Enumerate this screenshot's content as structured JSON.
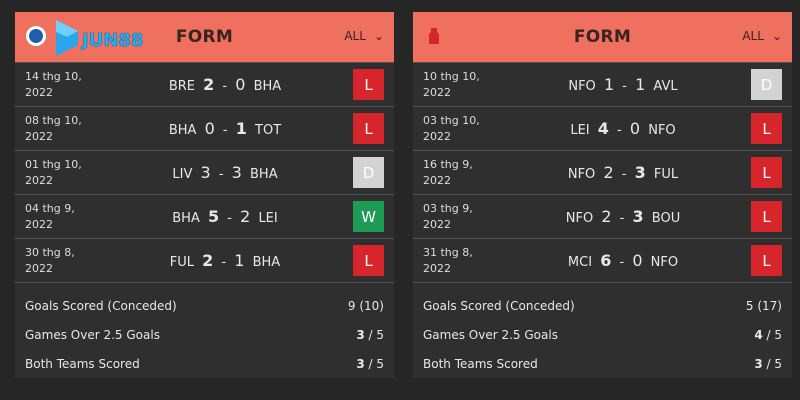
{
  "colors": {
    "header": "#ef705f",
    "loss": "#d7262b",
    "draw": "#d3d3d3",
    "win": "#1e9b55"
  },
  "watermark": "JUN88",
  "panels": [
    {
      "team": "BHA",
      "crest_icon": "brighton-crest-icon",
      "title": "FORM",
      "filter": "ALL",
      "matches": [
        {
          "date1": "14 thg 10,",
          "date2": "2022",
          "home": "BRE",
          "hs": "2",
          "as": "0",
          "away": "BHA",
          "bold": "h",
          "result": "L"
        },
        {
          "date1": "08 thg 10,",
          "date2": "2022",
          "home": "BHA",
          "hs": "0",
          "as": "1",
          "away": "TOT",
          "bold": "a",
          "result": "L"
        },
        {
          "date1": "01 thg 10,",
          "date2": "2022",
          "home": "LIV",
          "hs": "3",
          "as": "3",
          "away": "BHA",
          "bold": "",
          "result": "D"
        },
        {
          "date1": "04 thg 9,",
          "date2": "2022",
          "home": "BHA",
          "hs": "5",
          "as": "2",
          "away": "LEI",
          "bold": "h",
          "result": "W"
        },
        {
          "date1": "30 thg 8,",
          "date2": "2022",
          "home": "FUL",
          "hs": "2",
          "as": "1",
          "away": "BHA",
          "bold": "h",
          "result": "L"
        }
      ],
      "stats": [
        {
          "label": "Goals Scored (Conceded)",
          "value": "9 (10)",
          "bold": "",
          "rest": ""
        },
        {
          "label": "Games Over 2.5 Goals",
          "value": "",
          "bold": "3",
          "rest": " / 5"
        },
        {
          "label": "Both Teams Scored",
          "value": "",
          "bold": "3",
          "rest": " / 5"
        }
      ]
    },
    {
      "team": "NFO",
      "crest_icon": "nottingham-forest-crest-icon",
      "title": "FORM",
      "filter": "ALL",
      "matches": [
        {
          "date1": "10 thg 10,",
          "date2": "2022",
          "home": "NFO",
          "hs": "1",
          "as": "1",
          "away": "AVL",
          "bold": "",
          "result": "D"
        },
        {
          "date1": "03 thg 10,",
          "date2": "2022",
          "home": "LEI",
          "hs": "4",
          "as": "0",
          "away": "NFO",
          "bold": "h",
          "result": "L"
        },
        {
          "date1": "16 thg 9,",
          "date2": "2022",
          "home": "NFO",
          "hs": "2",
          "as": "3",
          "away": "FUL",
          "bold": "a",
          "result": "L"
        },
        {
          "date1": "03 thg 9,",
          "date2": "2022",
          "home": "NFO",
          "hs": "2",
          "as": "3",
          "away": "BOU",
          "bold": "a",
          "result": "L"
        },
        {
          "date1": "31 thg 8,",
          "date2": "2022",
          "home": "MCI",
          "hs": "6",
          "as": "0",
          "away": "NFO",
          "bold": "h",
          "result": "L"
        }
      ],
      "stats": [
        {
          "label": "Goals Scored (Conceded)",
          "value": "5 (17)",
          "bold": "",
          "rest": ""
        },
        {
          "label": "Games Over 2.5 Goals",
          "value": "",
          "bold": "4",
          "rest": " / 5"
        },
        {
          "label": "Both Teams Scored",
          "value": "",
          "bold": "3",
          "rest": " / 5"
        }
      ]
    }
  ]
}
